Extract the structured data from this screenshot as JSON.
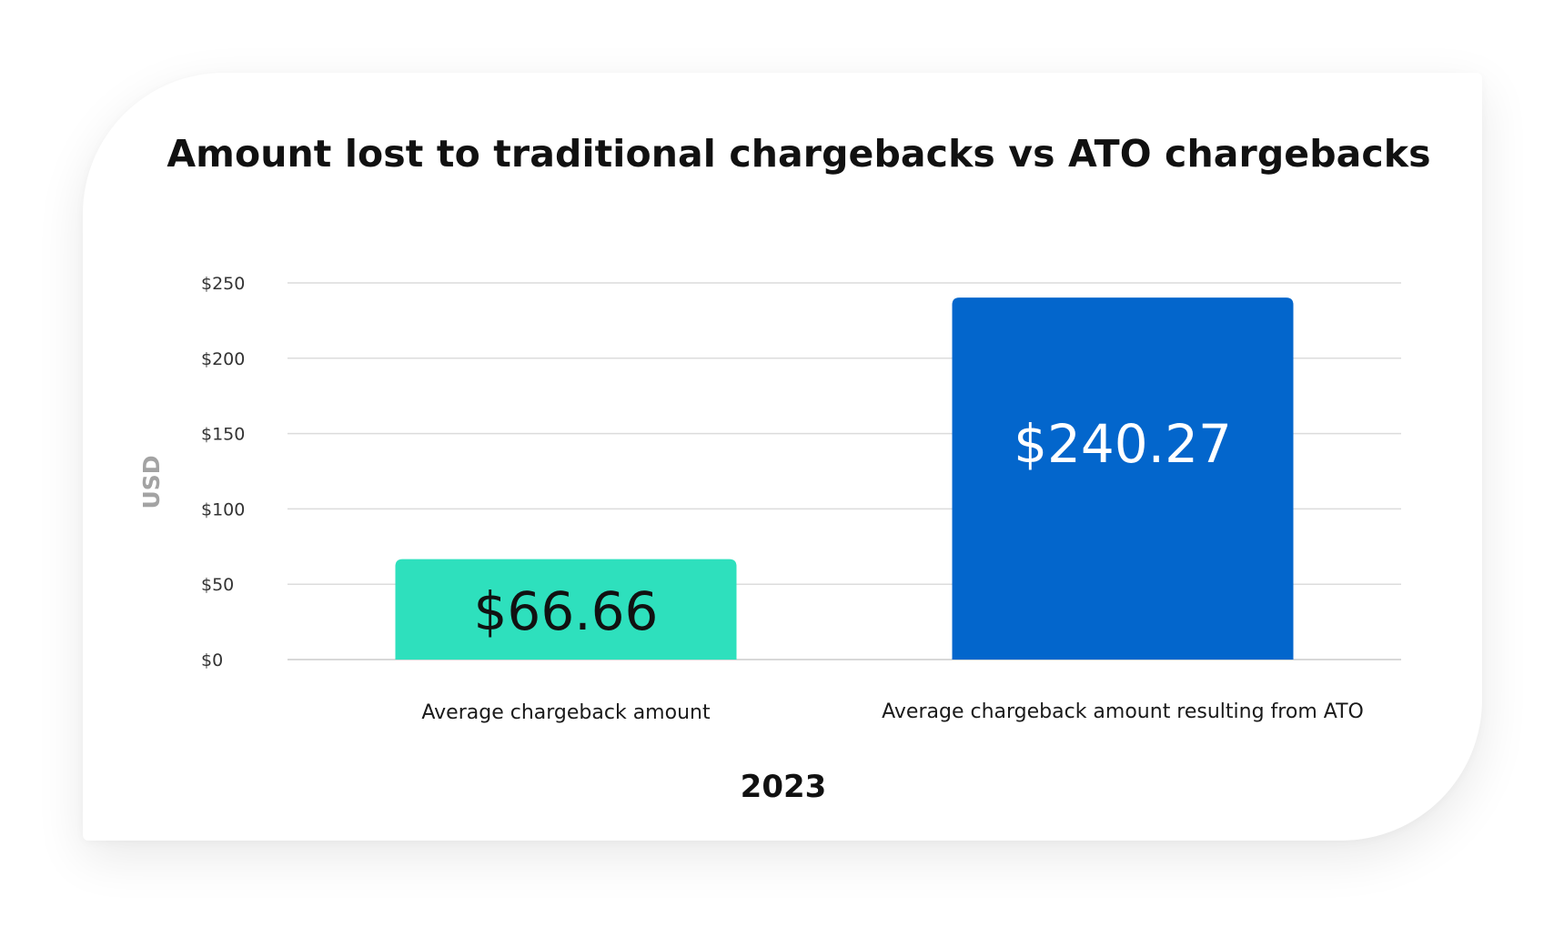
{
  "chart_data": {
    "type": "bar",
    "title": "Amount lost to traditional chargebacks vs ATO chargebacks",
    "xlabel": "2023",
    "ylabel": "USD",
    "categories": [
      "Average chargeback amount",
      "Average chargeback amount resulting from ATO"
    ],
    "values": [
      66.66,
      240.27
    ],
    "value_labels": [
      "$66.66",
      "$240.27"
    ],
    "bar_colors": [
      "#2ee0bd",
      "#0366cc"
    ],
    "value_label_colors": [
      "#111111",
      "#ffffff"
    ],
    "ylim": [
      0,
      250
    ],
    "yticks": [
      0,
      50,
      100,
      150,
      200,
      250
    ],
    "ytick_labels": [
      "$0",
      "$50",
      "$100",
      "$150",
      "$200",
      "$250"
    ],
    "grid": true,
    "gridline_color": "#dcdcdc"
  }
}
